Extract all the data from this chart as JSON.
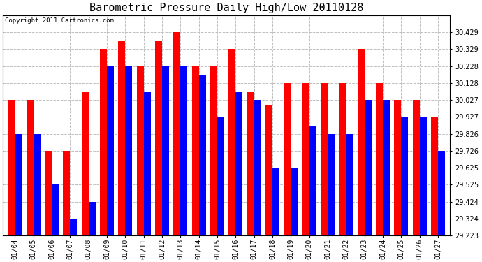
{
  "title": "Barometric Pressure Daily High/Low 20110128",
  "copyright": "Copyright 2011 Cartronics.com",
  "dates": [
    "01/04",
    "01/05",
    "01/06",
    "01/07",
    "01/08",
    "01/09",
    "01/10",
    "01/11",
    "01/12",
    "01/13",
    "01/14",
    "01/15",
    "01/16",
    "01/17",
    "01/18",
    "01/19",
    "01/20",
    "01/21",
    "01/22",
    "01/23",
    "01/24",
    "01/25",
    "01/26",
    "01/27"
  ],
  "highs": [
    30.027,
    30.027,
    29.726,
    29.726,
    30.078,
    30.329,
    30.38,
    30.228,
    30.38,
    30.429,
    30.228,
    30.228,
    30.329,
    30.078,
    29.997,
    30.128,
    30.128,
    30.128,
    30.128,
    30.329,
    30.128,
    30.027,
    30.027,
    29.927
  ],
  "lows": [
    29.826,
    29.826,
    29.525,
    29.324,
    29.424,
    30.228,
    30.228,
    30.078,
    30.228,
    30.228,
    30.178,
    29.927,
    30.078,
    30.027,
    29.625,
    29.625,
    29.876,
    29.826,
    29.826,
    30.027,
    30.027,
    29.927,
    29.927,
    29.726
  ],
  "high_color": "#ff0000",
  "low_color": "#0000ff",
  "bg_color": "#ffffff",
  "grid_color": "#c0c0c0",
  "ylim_min": 29.223,
  "ylim_max": 30.53,
  "yticks": [
    29.223,
    29.324,
    29.424,
    29.525,
    29.625,
    29.726,
    29.826,
    29.927,
    30.027,
    30.128,
    30.228,
    30.329,
    30.429
  ],
  "bar_width": 0.38,
  "title_fontsize": 11,
  "tick_fontsize": 7,
  "copyright_fontsize": 6.5,
  "figwidth": 6.9,
  "figheight": 3.75,
  "dpi": 100
}
